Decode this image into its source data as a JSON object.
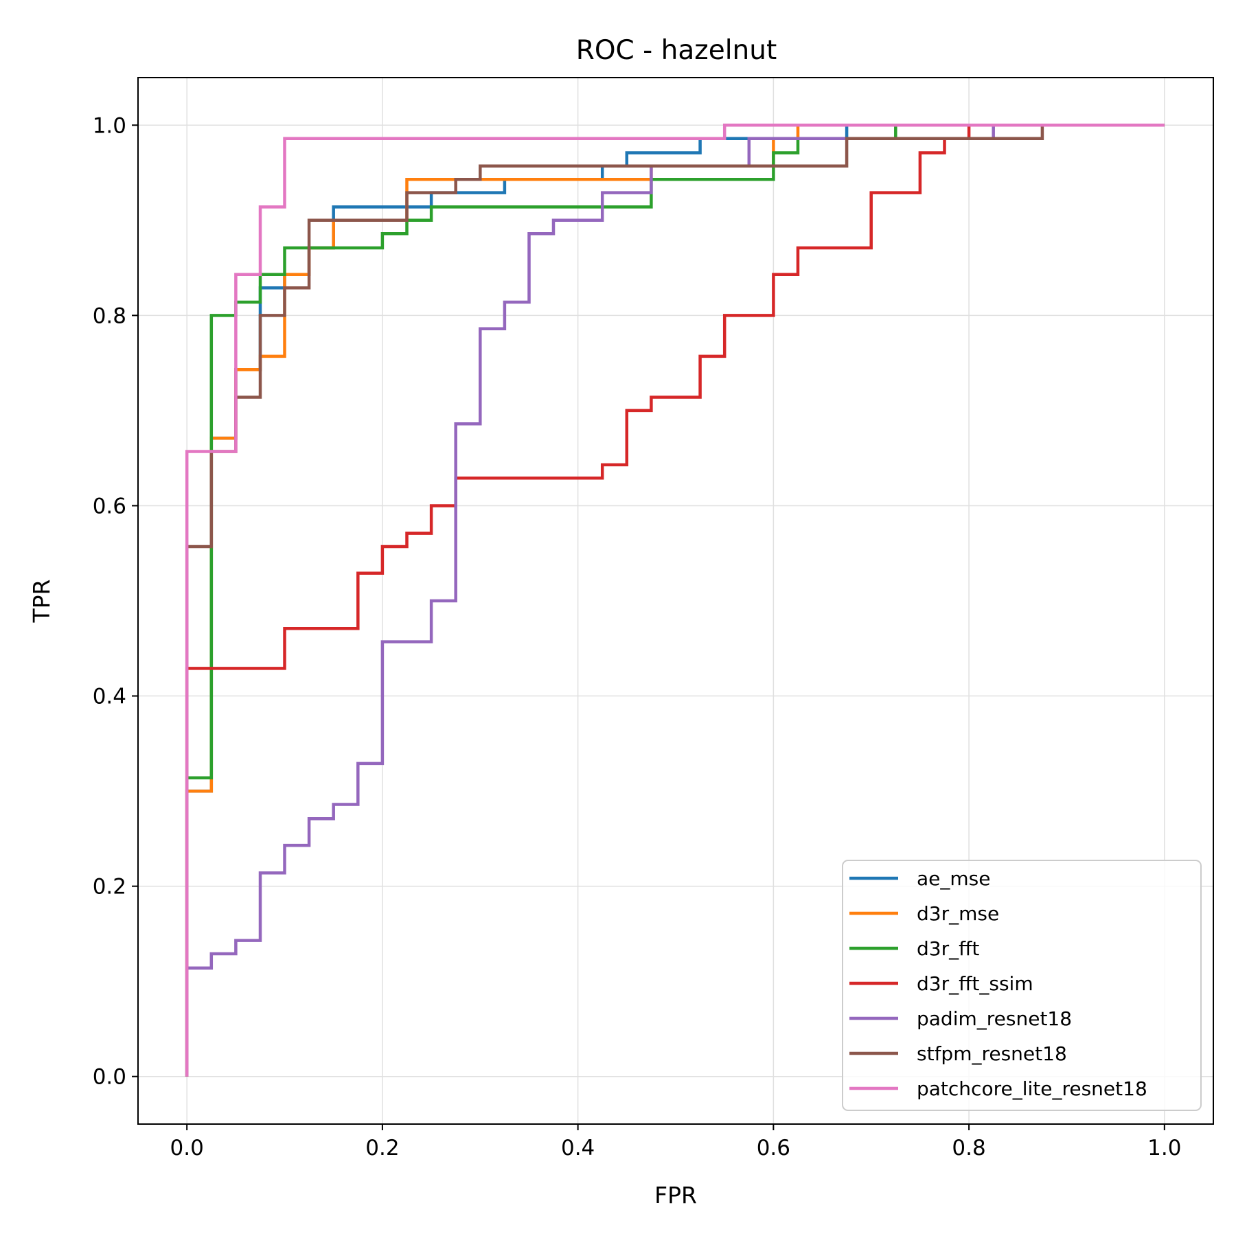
{
  "chart_data": {
    "type": "line",
    "title": "ROC - hazelnut",
    "xlabel": "FPR",
    "ylabel": "TPR",
    "xlim": [
      -0.05,
      1.05
    ],
    "ylim": [
      -0.05,
      1.05
    ],
    "grid": true,
    "legend_position": "lower-right",
    "xticks": [
      0.0,
      0.2,
      0.4,
      0.6,
      0.8,
      1.0
    ],
    "yticks": [
      0.0,
      0.2,
      0.4,
      0.6,
      0.8,
      1.0
    ],
    "xtick_labels": [
      "0.0",
      "0.2",
      "0.4",
      "0.6",
      "0.8",
      "1.0"
    ],
    "ytick_labels": [
      "0.0",
      "0.2",
      "0.4",
      "0.6",
      "0.8",
      "1.0"
    ],
    "series": [
      {
        "name": "ae_mse",
        "color": "#1f77b4",
        "points": [
          [
            0,
            0
          ],
          [
            0,
            0.3
          ],
          [
            0.025,
            0.3
          ],
          [
            0.025,
            0.671
          ],
          [
            0.05,
            0.671
          ],
          [
            0.05,
            0.743
          ],
          [
            0.075,
            0.743
          ],
          [
            0.075,
            0.829
          ],
          [
            0.1,
            0.829
          ],
          [
            0.1,
            0.843
          ],
          [
            0.125,
            0.843
          ],
          [
            0.125,
            0.871
          ],
          [
            0.15,
            0.871
          ],
          [
            0.15,
            0.914
          ],
          [
            0.25,
            0.914
          ],
          [
            0.25,
            0.929
          ],
          [
            0.325,
            0.929
          ],
          [
            0.325,
            0.943
          ],
          [
            0.425,
            0.943
          ],
          [
            0.425,
            0.957
          ],
          [
            0.45,
            0.957
          ],
          [
            0.45,
            0.971
          ],
          [
            0.525,
            0.971
          ],
          [
            0.525,
            0.986
          ],
          [
            0.675,
            0.986
          ],
          [
            0.675,
            1.0
          ],
          [
            1.0,
            1.0
          ]
        ]
      },
      {
        "name": "d3r_mse",
        "color": "#ff7f0e",
        "points": [
          [
            0,
            0
          ],
          [
            0,
            0.3
          ],
          [
            0.025,
            0.3
          ],
          [
            0.025,
            0.671
          ],
          [
            0.05,
            0.671
          ],
          [
            0.05,
            0.743
          ],
          [
            0.075,
            0.743
          ],
          [
            0.075,
            0.757
          ],
          [
            0.1,
            0.757
          ],
          [
            0.1,
            0.843
          ],
          [
            0.125,
            0.843
          ],
          [
            0.125,
            0.871
          ],
          [
            0.15,
            0.871
          ],
          [
            0.15,
            0.9
          ],
          [
            0.225,
            0.9
          ],
          [
            0.225,
            0.943
          ],
          [
            0.475,
            0.943
          ],
          [
            0.475,
            0.957
          ],
          [
            0.6,
            0.957
          ],
          [
            0.6,
            0.986
          ],
          [
            0.625,
            0.986
          ],
          [
            0.625,
            1.0
          ],
          [
            1.0,
            1.0
          ]
        ]
      },
      {
        "name": "d3r_fft",
        "color": "#2ca02c",
        "points": [
          [
            0,
            0
          ],
          [
            0,
            0.314
          ],
          [
            0.025,
            0.314
          ],
          [
            0.025,
            0.8
          ],
          [
            0.05,
            0.8
          ],
          [
            0.05,
            0.814
          ],
          [
            0.075,
            0.814
          ],
          [
            0.075,
            0.843
          ],
          [
            0.1,
            0.843
          ],
          [
            0.1,
            0.871
          ],
          [
            0.2,
            0.871
          ],
          [
            0.2,
            0.886
          ],
          [
            0.225,
            0.886
          ],
          [
            0.225,
            0.9
          ],
          [
            0.25,
            0.9
          ],
          [
            0.25,
            0.914
          ],
          [
            0.475,
            0.914
          ],
          [
            0.475,
            0.943
          ],
          [
            0.6,
            0.943
          ],
          [
            0.6,
            0.971
          ],
          [
            0.625,
            0.971
          ],
          [
            0.625,
            0.986
          ],
          [
            0.725,
            0.986
          ],
          [
            0.725,
            1.0
          ],
          [
            1.0,
            1.0
          ]
        ]
      },
      {
        "name": "d3r_fft_ssim",
        "color": "#d62728",
        "points": [
          [
            0,
            0
          ],
          [
            0,
            0.429
          ],
          [
            0.1,
            0.429
          ],
          [
            0.1,
            0.471
          ],
          [
            0.175,
            0.471
          ],
          [
            0.175,
            0.529
          ],
          [
            0.2,
            0.529
          ],
          [
            0.2,
            0.557
          ],
          [
            0.225,
            0.557
          ],
          [
            0.225,
            0.571
          ],
          [
            0.25,
            0.571
          ],
          [
            0.25,
            0.6
          ],
          [
            0.275,
            0.6
          ],
          [
            0.275,
            0.629
          ],
          [
            0.425,
            0.629
          ],
          [
            0.425,
            0.643
          ],
          [
            0.45,
            0.643
          ],
          [
            0.45,
            0.7
          ],
          [
            0.475,
            0.7
          ],
          [
            0.475,
            0.714
          ],
          [
            0.525,
            0.714
          ],
          [
            0.525,
            0.757
          ],
          [
            0.55,
            0.757
          ],
          [
            0.55,
            0.8
          ],
          [
            0.6,
            0.8
          ],
          [
            0.6,
            0.843
          ],
          [
            0.625,
            0.843
          ],
          [
            0.625,
            0.871
          ],
          [
            0.7,
            0.871
          ],
          [
            0.7,
            0.929
          ],
          [
            0.75,
            0.929
          ],
          [
            0.75,
            0.971
          ],
          [
            0.775,
            0.971
          ],
          [
            0.775,
            0.986
          ],
          [
            0.8,
            0.986
          ],
          [
            0.8,
            1.0
          ],
          [
            1.0,
            1.0
          ]
        ]
      },
      {
        "name": "padim_resnet18",
        "color": "#9467bd",
        "points": [
          [
            0,
            0
          ],
          [
            0,
            0.114
          ],
          [
            0.025,
            0.114
          ],
          [
            0.025,
            0.129
          ],
          [
            0.05,
            0.129
          ],
          [
            0.05,
            0.143
          ],
          [
            0.075,
            0.143
          ],
          [
            0.075,
            0.214
          ],
          [
            0.1,
            0.214
          ],
          [
            0.1,
            0.243
          ],
          [
            0.125,
            0.243
          ],
          [
            0.125,
            0.271
          ],
          [
            0.15,
            0.271
          ],
          [
            0.15,
            0.286
          ],
          [
            0.175,
            0.286
          ],
          [
            0.175,
            0.329
          ],
          [
            0.2,
            0.329
          ],
          [
            0.2,
            0.457
          ],
          [
            0.25,
            0.457
          ],
          [
            0.25,
            0.5
          ],
          [
            0.275,
            0.5
          ],
          [
            0.275,
            0.686
          ],
          [
            0.3,
            0.686
          ],
          [
            0.3,
            0.786
          ],
          [
            0.325,
            0.786
          ],
          [
            0.325,
            0.814
          ],
          [
            0.35,
            0.814
          ],
          [
            0.35,
            0.886
          ],
          [
            0.375,
            0.886
          ],
          [
            0.375,
            0.9
          ],
          [
            0.425,
            0.9
          ],
          [
            0.425,
            0.929
          ],
          [
            0.475,
            0.929
          ],
          [
            0.475,
            0.957
          ],
          [
            0.575,
            0.957
          ],
          [
            0.575,
            0.986
          ],
          [
            0.825,
            0.986
          ],
          [
            0.825,
            1.0
          ],
          [
            1.0,
            1.0
          ]
        ]
      },
      {
        "name": "stfpm_resnet18",
        "color": "#8c564b",
        "points": [
          [
            0,
            0
          ],
          [
            0,
            0.557
          ],
          [
            0.025,
            0.557
          ],
          [
            0.025,
            0.657
          ],
          [
            0.05,
            0.657
          ],
          [
            0.05,
            0.714
          ],
          [
            0.075,
            0.714
          ],
          [
            0.075,
            0.8
          ],
          [
            0.1,
            0.8
          ],
          [
            0.1,
            0.829
          ],
          [
            0.125,
            0.829
          ],
          [
            0.125,
            0.9
          ],
          [
            0.225,
            0.9
          ],
          [
            0.225,
            0.929
          ],
          [
            0.275,
            0.929
          ],
          [
            0.275,
            0.943
          ],
          [
            0.3,
            0.943
          ],
          [
            0.3,
            0.957
          ],
          [
            0.675,
            0.957
          ],
          [
            0.675,
            0.986
          ],
          [
            0.875,
            0.986
          ],
          [
            0.875,
            1.0
          ],
          [
            1.0,
            1.0
          ]
        ]
      },
      {
        "name": "patchcore_lite_resnet18",
        "color": "#e377c2",
        "points": [
          [
            0,
            0
          ],
          [
            0,
            0.657
          ],
          [
            0.05,
            0.657
          ],
          [
            0.05,
            0.843
          ],
          [
            0.075,
            0.843
          ],
          [
            0.075,
            0.914
          ],
          [
            0.1,
            0.914
          ],
          [
            0.1,
            0.986
          ],
          [
            0.55,
            0.986
          ],
          [
            0.55,
            1.0
          ],
          [
            1.0,
            1.0
          ]
        ]
      }
    ]
  }
}
